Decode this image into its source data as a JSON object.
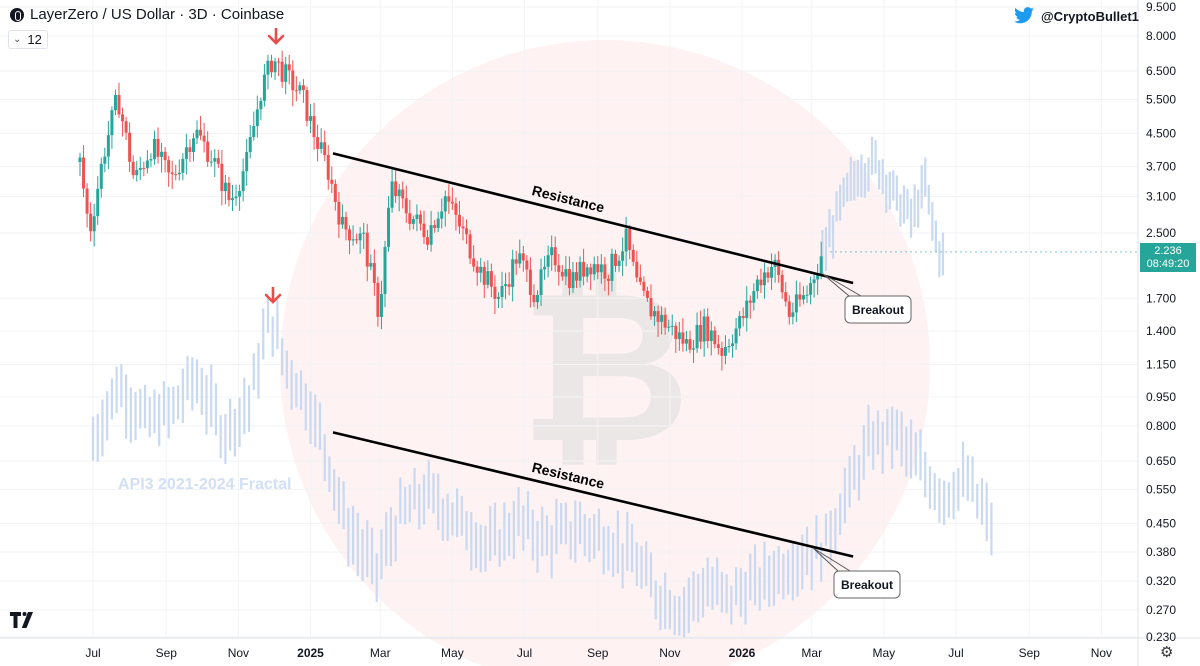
{
  "header": {
    "title": "LayerZero / US Dollar · 3D · Coinbase",
    "interval_value": "12",
    "twitter_handle": "@CryptoBullet1"
  },
  "price_tag": {
    "price": "2.236",
    "countdown": "08:49:20"
  },
  "colors": {
    "up": "#26a69a",
    "down": "#ef5350",
    "fractal": "#c9d9f2",
    "arrow": "#e84c4c"
  },
  "chart_data": [
    {
      "type": "candlestick",
      "title": "LayerZero / US Dollar · 3D · Coinbase",
      "y_scale": "log",
      "y_ticks": [
        "9.500",
        "8.000",
        "6.500",
        "5.500",
        "4.500",
        "3.700",
        "3.100",
        "2.500",
        "1.700",
        "1.400",
        "1.150",
        "0.950",
        "0.800",
        "0.650",
        "0.550",
        "0.450",
        "0.380",
        "0.320",
        "0.270",
        "0.230"
      ],
      "x_ticks": [
        "Jul",
        "Sep",
        "Nov",
        "2025",
        "Mar",
        "May",
        "Jul",
        "Sep",
        "Nov",
        "2026",
        "Mar",
        "May",
        "Jul",
        "Sep",
        "Nov"
      ],
      "price_path": [
        [
          "2024-06-20",
          3.8
        ],
        [
          "2024-06-28",
          2.5
        ],
        [
          "2024-07-10",
          4.0
        ],
        [
          "2024-07-22",
          5.6
        ],
        [
          "2024-08-05",
          3.4
        ],
        [
          "2024-08-20",
          4.2
        ],
        [
          "2024-09-05",
          3.4
        ],
        [
          "2024-09-25",
          4.6
        ],
        [
          "2024-10-10",
          3.9
        ],
        [
          "2024-10-25",
          3.0
        ],
        [
          "2024-11-08",
          3.8
        ],
        [
          "2024-11-20",
          5.8
        ],
        [
          "2024-11-30",
          7.0
        ],
        [
          "2024-12-10",
          6.4
        ],
        [
          "2024-12-25",
          5.6
        ],
        [
          "2025-01-05",
          4.4
        ],
        [
          "2025-01-15",
          3.7
        ],
        [
          "2025-01-28",
          2.6
        ],
        [
          "2025-02-15",
          2.4
        ],
        [
          "2025-02-28",
          1.55
        ],
        [
          "2025-03-10",
          3.3
        ],
        [
          "2025-03-25",
          2.8
        ],
        [
          "2025-04-10",
          2.5
        ],
        [
          "2025-04-25",
          3.1
        ],
        [
          "2025-05-10",
          2.5
        ],
        [
          "2025-05-25",
          2.0
        ],
        [
          "2025-06-10",
          1.7
        ],
        [
          "2025-06-25",
          2.2
        ],
        [
          "2025-07-10",
          1.75
        ],
        [
          "2025-07-25",
          2.2
        ],
        [
          "2025-08-10",
          1.9
        ],
        [
          "2025-08-25",
          2.1
        ],
        [
          "2025-09-10",
          2.0
        ],
        [
          "2025-09-25",
          2.4
        ],
        [
          "2025-10-05",
          1.8
        ],
        [
          "2025-10-15",
          1.6
        ],
        [
          "2025-10-30",
          1.45
        ],
        [
          "2025-11-15",
          1.3
        ],
        [
          "2025-12-01",
          1.45
        ],
        [
          "2025-12-15",
          1.25
        ],
        [
          "2026-01-01",
          1.5
        ],
        [
          "2026-01-15",
          1.9
        ],
        [
          "2026-01-28",
          2.1
        ],
        [
          "2026-02-10",
          1.55
        ],
        [
          "2026-02-25",
          1.75
        ],
        [
          "2026-03-10",
          2.236
        ]
      ],
      "fractal_label": "",
      "fractal_path": [
        [
          "2026-03-10",
          2.2
        ],
        [
          "2026-03-25",
          3.0
        ],
        [
          "2026-04-10",
          3.7
        ],
        [
          "2026-04-25",
          3.9
        ],
        [
          "2026-05-10",
          3.2
        ],
        [
          "2026-05-25",
          2.8
        ],
        [
          "2026-06-05",
          3.4
        ],
        [
          "2026-06-15",
          2.4
        ],
        [
          "2026-06-20",
          2.2
        ]
      ],
      "annotations": [
        {
          "text": "Resistance",
          "from": [
            "2025-01-20",
            4.0
          ],
          "to": [
            "2026-04-05",
            1.86
          ]
        },
        {
          "text": "Breakout"
        },
        {
          "at": [
            "2024-12-01",
            8.2
          ],
          "marker": "down-arrow"
        }
      ]
    },
    {
      "type": "bar",
      "title": "API3 2021-2024 Fractal",
      "y_scale": "log",
      "price_path": [
        [
          "2024-07-01",
          0.75
        ],
        [
          "2024-07-22",
          1.05
        ],
        [
          "2024-08-15",
          0.85
        ],
        [
          "2024-09-05",
          0.9
        ],
        [
          "2024-09-25",
          1.1
        ],
        [
          "2024-10-20",
          0.8
        ],
        [
          "2024-11-10",
          0.95
        ],
        [
          "2024-11-28",
          1.6
        ],
        [
          "2024-12-10",
          1.2
        ],
        [
          "2024-12-30",
          0.95
        ],
        [
          "2025-01-15",
          0.7
        ],
        [
          "2025-02-01",
          0.45
        ],
        [
          "2025-02-25",
          0.35
        ],
        [
          "2025-03-20",
          0.5
        ],
        [
          "2025-04-10",
          0.55
        ],
        [
          "2025-05-05",
          0.48
        ],
        [
          "2025-06-01",
          0.4
        ],
        [
          "2025-06-25",
          0.47
        ],
        [
          "2025-07-20",
          0.42
        ],
        [
          "2025-08-15",
          0.45
        ],
        [
          "2025-09-10",
          0.42
        ],
        [
          "2025-09-30",
          0.38
        ],
        [
          "2025-10-20",
          0.31
        ],
        [
          "2025-11-10",
          0.28
        ],
        [
          "2025-12-01",
          0.32
        ],
        [
          "2025-12-20",
          0.3
        ],
        [
          "2026-01-10",
          0.32
        ],
        [
          "2026-01-30",
          0.35
        ],
        [
          "2026-02-20",
          0.38
        ],
        [
          "2026-03-10",
          0.4
        ],
        [
          "2026-03-30",
          0.55
        ],
        [
          "2026-04-20",
          0.75
        ],
        [
          "2026-05-10",
          0.8
        ],
        [
          "2026-05-30",
          0.65
        ],
        [
          "2026-06-20",
          0.55
        ],
        [
          "2026-07-10",
          0.6
        ],
        [
          "2026-08-01",
          0.45
        ]
      ],
      "annotations": [
        {
          "text": "Resistance",
          "from": [
            "2025-01-20",
            0.77
          ],
          "to": [
            "2026-04-05",
            0.37
          ]
        },
        {
          "text": "Breakout"
        },
        {
          "at": [
            "2024-11-28",
            1.8
          ],
          "marker": "down-arrow"
        }
      ]
    }
  ]
}
